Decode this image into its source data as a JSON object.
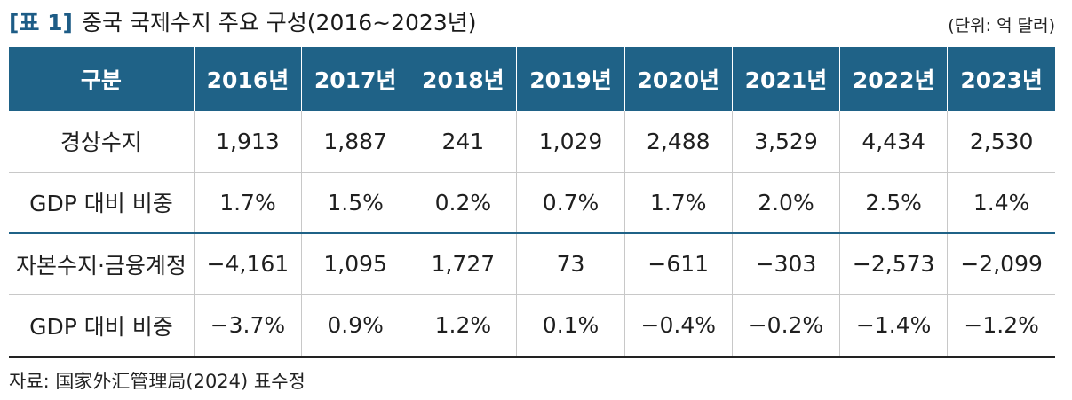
{
  "title": {
    "label": "[표 1]",
    "text": "중국 국제수지 주요 구성(2016~2023년)"
  },
  "unit": "(단위: 억 달러)",
  "table": {
    "headers": [
      "구분",
      "2016년",
      "2017년",
      "2018년",
      "2019년",
      "2020년",
      "2021년",
      "2022년",
      "2023년"
    ],
    "rows": [
      [
        "경상수지",
        "1,913",
        "1,887",
        "241",
        "1,029",
        "2,488",
        "3,529",
        "4,434",
        "2,530"
      ],
      [
        "GDP 대비 비중",
        "1.7%",
        "1.5%",
        "0.2%",
        "0.7%",
        "1.7%",
        "2.0%",
        "2.5%",
        "1.4%"
      ],
      [
        "자본수지·금융계정",
        "−4,161",
        "1,095",
        "1,727",
        "73",
        "−611",
        "−303",
        "−2,573",
        "−2,099"
      ],
      [
        "GDP 대비 비중",
        "−3.7%",
        "0.9%",
        "1.2%",
        "0.1%",
        "−0.4%",
        "−0.2%",
        "−1.4%",
        "−1.2%"
      ]
    ]
  },
  "source": "자료: 国家外汇管理局(2024) 표수정",
  "colors": {
    "header_bg": "#1f6287",
    "header_text": "#ffffff",
    "title_label": "#1d5c86"
  }
}
